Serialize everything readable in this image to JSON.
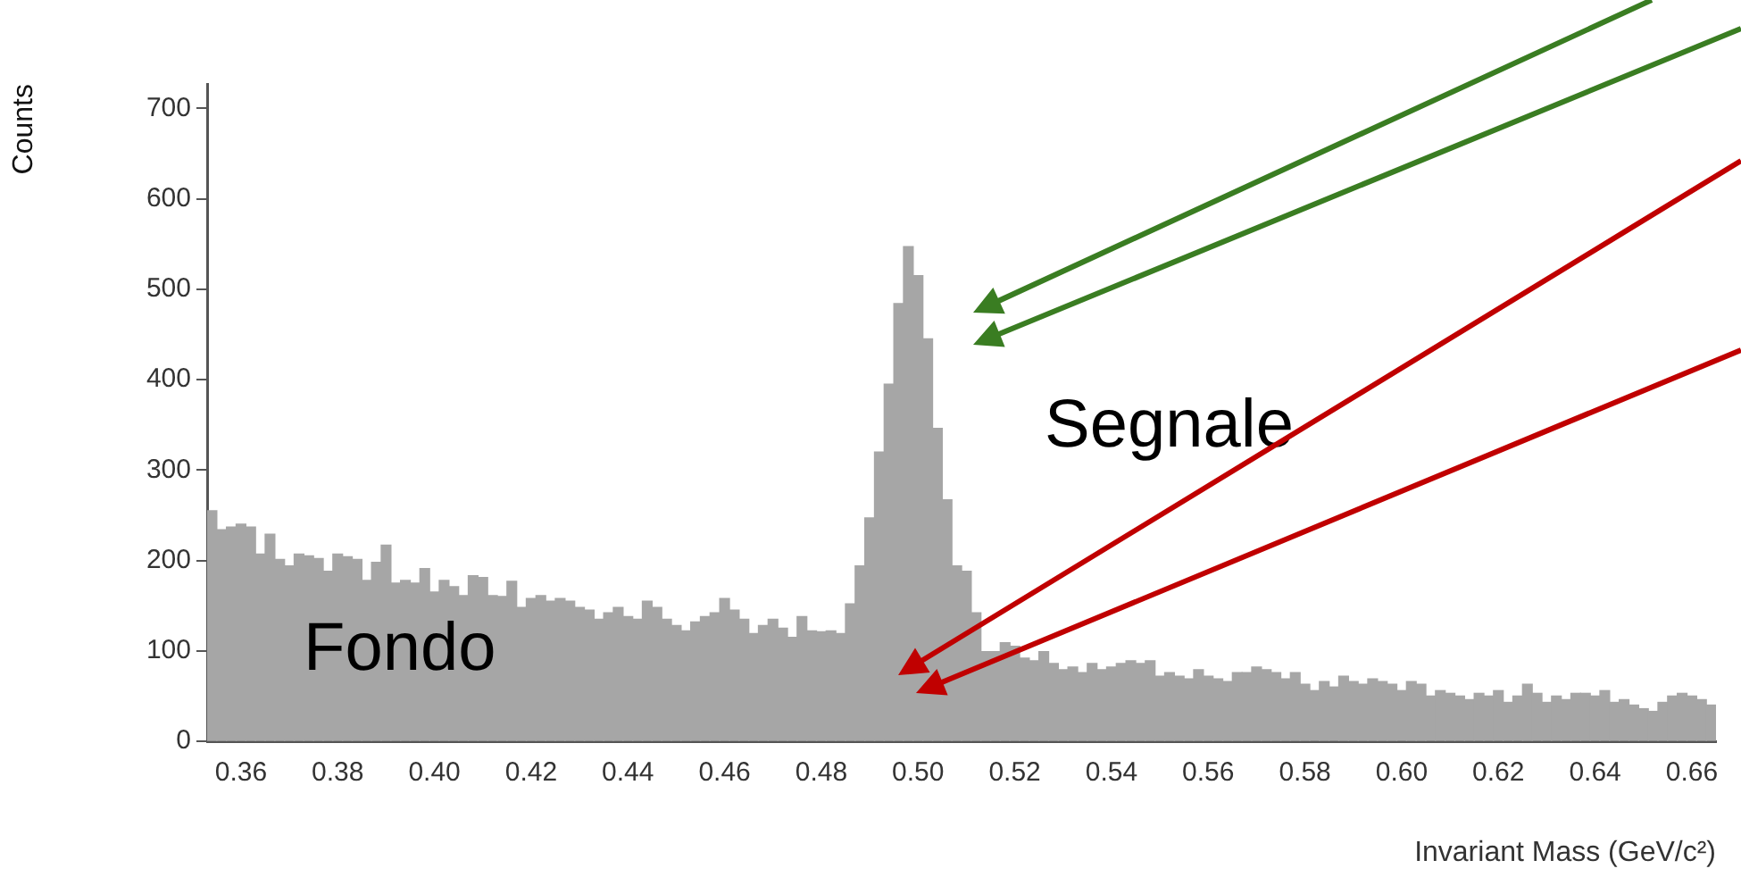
{
  "chart_data": {
    "type": "histogram",
    "xlabel": "Invariant Mass (GeV/c²)",
    "ylabel": "Counts",
    "color": "#a6a6a6",
    "annotations": [
      "Segnale",
      "Fondo"
    ],
    "bins": [
      0.353,
      0.355,
      0.357,
      0.359,
      0.361,
      0.363,
      0.365,
      0.367,
      0.369,
      0.371,
      0.373,
      0.375,
      0.377,
      0.379,
      0.381,
      0.383,
      0.385,
      0.387,
      0.389,
      0.391,
      0.393,
      0.395,
      0.397,
      0.399,
      0.401,
      0.403,
      0.405,
      0.407,
      0.409,
      0.411,
      0.413,
      0.415,
      0.417,
      0.419,
      0.421,
      0.423,
      0.425,
      0.427,
      0.429,
      0.431,
      0.433,
      0.435,
      0.437,
      0.439,
      0.441,
      0.443,
      0.445,
      0.447,
      0.449,
      0.451,
      0.453,
      0.455,
      0.457,
      0.459,
      0.461,
      0.463,
      0.465,
      0.467,
      0.469,
      0.471,
      0.473,
      0.475,
      0.477,
      0.479,
      0.481,
      0.483,
      0.485,
      0.487,
      0.489,
      0.491,
      0.493,
      0.495,
      0.497,
      0.499,
      0.501,
      0.503,
      0.505,
      0.507,
      0.509,
      0.511,
      0.513,
      0.515,
      0.517,
      0.519,
      0.521,
      0.523,
      0.525,
      0.527,
      0.529,
      0.531,
      0.533,
      0.535,
      0.537,
      0.539,
      0.541,
      0.543,
      0.545,
      0.547,
      0.549,
      0.551,
      0.553,
      0.555,
      0.557,
      0.559,
      0.561,
      0.563,
      0.565,
      0.567,
      0.569,
      0.571,
      0.573,
      0.575,
      0.577,
      0.579,
      0.581,
      0.583,
      0.585,
      0.587,
      0.589,
      0.591,
      0.593,
      0.595,
      0.597,
      0.599,
      0.601,
      0.603,
      0.605,
      0.607,
      0.609,
      0.611,
      0.613,
      0.615,
      0.617,
      0.619,
      0.621,
      0.623,
      0.625,
      0.627,
      0.629,
      0.631,
      0.633,
      0.635,
      0.637,
      0.639,
      0.641,
      0.643,
      0.645,
      0.647,
      0.649,
      0.651,
      0.653,
      0.655,
      0.657,
      0.659,
      0.661,
      0.663,
      0.665
    ],
    "values": [
      255,
      234,
      237,
      240,
      237,
      207,
      229,
      201,
      194,
      207,
      205,
      202,
      188,
      207,
      204,
      201,
      178,
      198,
      217,
      175,
      178,
      175,
      191,
      165,
      178,
      171,
      161,
      183,
      181,
      161,
      160,
      177,
      148,
      158,
      161,
      155,
      158,
      155,
      148,
      145,
      135,
      142,
      148,
      138,
      135,
      155,
      148,
      135,
      128,
      122,
      132,
      138,
      142,
      158,
      145,
      135,
      119,
      128,
      135,
      125,
      115,
      138,
      122,
      121,
      122,
      119,
      152,
      194,
      247,
      320,
      395,
      484,
      547,
      515,
      445,
      346,
      267,
      194,
      188,
      142,
      99,
      99,
      109,
      105,
      92,
      89,
      99,
      86,
      79,
      82,
      76,
      86,
      79,
      82,
      86,
      89,
      86,
      89,
      72,
      76,
      72,
      69,
      79,
      72,
      69,
      66,
      76,
      76,
      82,
      79,
      76,
      69,
      76,
      63,
      56,
      66,
      60,
      72,
      66,
      63,
      69,
      66,
      63,
      56,
      66,
      63,
      50,
      56,
      53,
      50,
      46,
      53,
      50,
      56,
      43,
      50,
      63,
      53,
      43,
      50,
      46,
      53,
      53,
      50,
      56,
      43,
      46,
      40,
      36,
      33,
      43,
      50,
      53,
      50,
      46,
      40
    ],
    "xlim": [
      0.353,
      0.665
    ],
    "xticks": [
      {
        "value": 0.36,
        "label": "0.36"
      },
      {
        "value": 0.38,
        "label": "0.38"
      },
      {
        "value": 0.4,
        "label": "0.40"
      },
      {
        "value": 0.42,
        "label": "0.42"
      },
      {
        "value": 0.44,
        "label": "0.44"
      },
      {
        "value": 0.46,
        "label": "0.46"
      },
      {
        "value": 0.48,
        "label": "0.48"
      },
      {
        "value": 0.5,
        "label": "0.50"
      },
      {
        "value": 0.52,
        "label": "0.52"
      },
      {
        "value": 0.54,
        "label": "0.54"
      },
      {
        "value": 0.56,
        "label": "0.56"
      },
      {
        "value": 0.58,
        "label": "0.58"
      },
      {
        "value": 0.6,
        "label": "0.60"
      },
      {
        "value": 0.62,
        "label": "0.62"
      },
      {
        "value": 0.64,
        "label": "0.64"
      },
      {
        "value": 0.66,
        "label": "0.66"
      }
    ],
    "ylim": [
      0,
      727
    ],
    "yticks": [
      0,
      100,
      200,
      300,
      400,
      500,
      600,
      700
    ]
  }
}
